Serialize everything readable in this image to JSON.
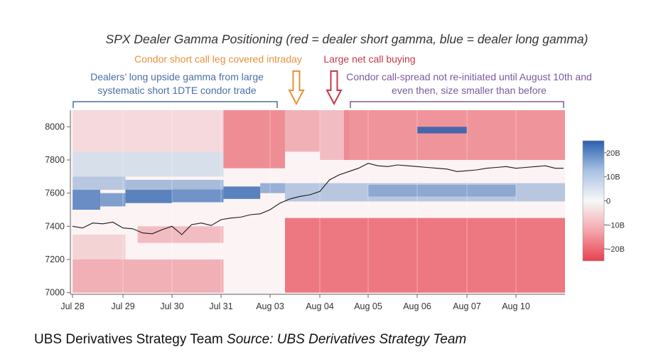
{
  "title": "SPX Dealer Gamma Positioning (red = dealer short gamma, blue = dealer long gamma)",
  "annotations": {
    "orange": "Condor short call leg covered intraday",
    "red": "Large net call buying",
    "blue": "Dealers’ long upside gamma from large systematic short 1DTE condor trade",
    "purple": "Condor call-spread not re-initiated until August 10th and even then, size smaller than before"
  },
  "footer": {
    "team": "UBS Derivatives Strategy Team",
    "source": "Source: UBS Derivatives Strategy Team"
  },
  "colors": {
    "long_gamma": "#2a5fae",
    "short_gamma": "#e8404f",
    "neutral": "#f5f5f5",
    "orange_annotation": "#e8913a",
    "red_annotation": "#c4384a",
    "blue_annotation": "#4a6fa5",
    "purple_annotation": "#7b5a9c",
    "price_line": "#1a1a1a"
  },
  "chart_data": {
    "type": "heatmap",
    "title": "SPX Dealer Gamma Positioning (red = dealer short gamma, blue = dealer long gamma)",
    "x_tick_labels": [
      "Jul 28",
      "Jul 29",
      "Jul 30",
      "Jul 31",
      "Aug 03",
      "Aug 04",
      "Aug 05",
      "Aug 06",
      "Aug 07",
      "Aug 10"
    ],
    "y_ticks": [
      7000,
      7200,
      7400,
      7600,
      7800,
      8000
    ],
    "ylim": [
      6990,
      8100
    ],
    "colorbar": {
      "tick_labels": [
        "20B",
        "10B",
        "0",
        "−10B",
        "−20B"
      ],
      "range": [
        -25,
        25
      ],
      "unit": "B"
    },
    "price_series": {
      "x": [
        0,
        0.2,
        0.4,
        0.6,
        0.8,
        1.0,
        1.2,
        1.4,
        1.6,
        1.8,
        2.0,
        2.2,
        2.4,
        2.6,
        2.8,
        3.0,
        3.2,
        3.4,
        3.6,
        3.8,
        4.0,
        4.2,
        4.4,
        4.6,
        4.8,
        5.0,
        5.2,
        5.4,
        5.6,
        5.8,
        6.0,
        6.2,
        6.4,
        6.6,
        6.8,
        7.0,
        7.2,
        7.4,
        7.6,
        7.8,
        8.0,
        8.2,
        8.4,
        8.6,
        8.8,
        9.0,
        9.2,
        9.4,
        9.6,
        9.8,
        10.0
      ],
      "y": [
        7400,
        7390,
        7420,
        7415,
        7425,
        7390,
        7385,
        7360,
        7355,
        7380,
        7400,
        7350,
        7410,
        7420,
        7405,
        7440,
        7450,
        7455,
        7470,
        7475,
        7500,
        7540,
        7565,
        7580,
        7590,
        7610,
        7680,
        7710,
        7730,
        7750,
        7780,
        7765,
        7760,
        7770,
        7765,
        7760,
        7755,
        7750,
        7745,
        7730,
        7735,
        7740,
        7750,
        7755,
        7760,
        7750,
        7755,
        7760,
        7765,
        7750,
        7750
      ]
    },
    "bands": [
      {
        "x": [
          0.0,
          0.55
        ],
        "y": [
          7500,
          7620
        ],
        "value": 18
      },
      {
        "x": [
          0.55,
          1.05
        ],
        "y": [
          7520,
          7600
        ],
        "value": 15
      },
      {
        "x": [
          1.05,
          2.0
        ],
        "y": [
          7540,
          7620
        ],
        "value": 20
      },
      {
        "x": [
          2.0,
          3.05
        ],
        "y": [
          7545,
          7625
        ],
        "value": 17
      },
      {
        "x": [
          3.05,
          3.8
        ],
        "y": [
          7565,
          7640
        ],
        "value": 20
      },
      {
        "x": [
          3.8,
          4.3
        ],
        "y": [
          7600,
          7660
        ],
        "value": 12
      },
      {
        "x": [
          0.0,
          1.05
        ],
        "y": [
          7620,
          7700
        ],
        "value": 8
      },
      {
        "x": [
          1.05,
          3.05
        ],
        "y": [
          7620,
          7680
        ],
        "value": 10
      },
      {
        "x": [
          0.0,
          3.05
        ],
        "y": [
          7700,
          7850
        ],
        "value": 4
      },
      {
        "x": [
          0.0,
          3.05
        ],
        "y": [
          7000,
          7200
        ],
        "value": -10
      },
      {
        "x": [
          0.0,
          1.05
        ],
        "y": [
          7200,
          7350
        ],
        "value": -5
      },
      {
        "x": [
          1.3,
          3.05
        ],
        "y": [
          7300,
          7400
        ],
        "value": -8
      },
      {
        "x": [
          0.0,
          3.05
        ],
        "y": [
          7850,
          8100
        ],
        "value": -4
      },
      {
        "x": [
          3.05,
          4.3
        ],
        "y": [
          7750,
          8100
        ],
        "value": -15
      },
      {
        "x": [
          4.3,
          5.0
        ],
        "y": [
          7850,
          8100
        ],
        "value": -10
      },
      {
        "x": [
          5.0,
          5.6
        ],
        "y": [
          7800,
          8100
        ],
        "value": -8
      },
      {
        "x": [
          4.3,
          10.0
        ],
        "y": [
          7550,
          7660
        ],
        "value": 8
      },
      {
        "x": [
          6.0,
          9.0
        ],
        "y": [
          7580,
          7650
        ],
        "value": 12
      },
      {
        "x": [
          4.3,
          10.0
        ],
        "y": [
          7000,
          7450
        ],
        "value": -18
      },
      {
        "x": [
          5.5,
          10.0
        ],
        "y": [
          7800,
          8100
        ],
        "value": -14
      },
      {
        "x": [
          7.0,
          8.0
        ],
        "y": [
          7960,
          8000
        ],
        "value": 22
      }
    ]
  }
}
